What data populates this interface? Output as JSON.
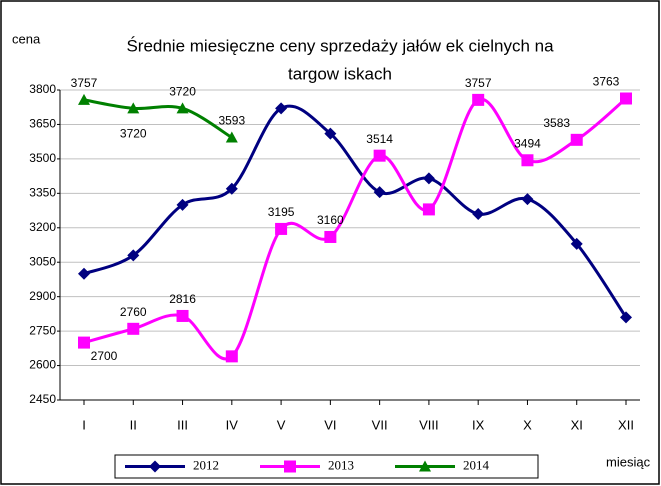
{
  "chart_data": {
    "type": "line",
    "title": [
      "Średnie miesięczne ceny sprzedaży jałów ek cielnych na",
      "targow iskach"
    ],
    "y_label": "cena",
    "x_label": "miesiąc",
    "categories": [
      "I",
      "II",
      "III",
      "IV",
      "V",
      "VI",
      "VII",
      "VIII",
      "IX",
      "X",
      "XI",
      "XII"
    ],
    "ylim": [
      2450,
      3800
    ],
    "yticks": [
      2450,
      2600,
      2750,
      2900,
      3050,
      3200,
      3350,
      3500,
      3650,
      3800
    ],
    "grid": true,
    "legend": "bottom",
    "smooth": true,
    "series": [
      {
        "name": "2012",
        "color": "#000080",
        "marker": "diamond",
        "values": [
          3000,
          3080,
          3300,
          3370,
          3720,
          3610,
          3355,
          3415,
          3260,
          3325,
          3130,
          2810
        ],
        "show_labels": false
      },
      {
        "name": "2013",
        "color": "#ff00ff",
        "marker": "square",
        "values": [
          2700,
          2760,
          2816,
          2640,
          3195,
          3160,
          3514,
          3280,
          3757,
          3494,
          3583,
          3763
        ],
        "show_labels": [
          true,
          true,
          true,
          false,
          true,
          true,
          true,
          false,
          true,
          true,
          true,
          true
        ]
      },
      {
        "name": "2014",
        "color": "#008000",
        "marker": "triangle",
        "values": [
          3757,
          3720,
          3720,
          3593,
          null,
          null,
          null,
          null,
          null,
          null,
          null,
          null
        ],
        "show_labels": [
          true,
          true,
          true,
          true,
          false,
          false,
          false,
          false,
          false,
          false,
          false,
          false
        ]
      }
    ]
  }
}
